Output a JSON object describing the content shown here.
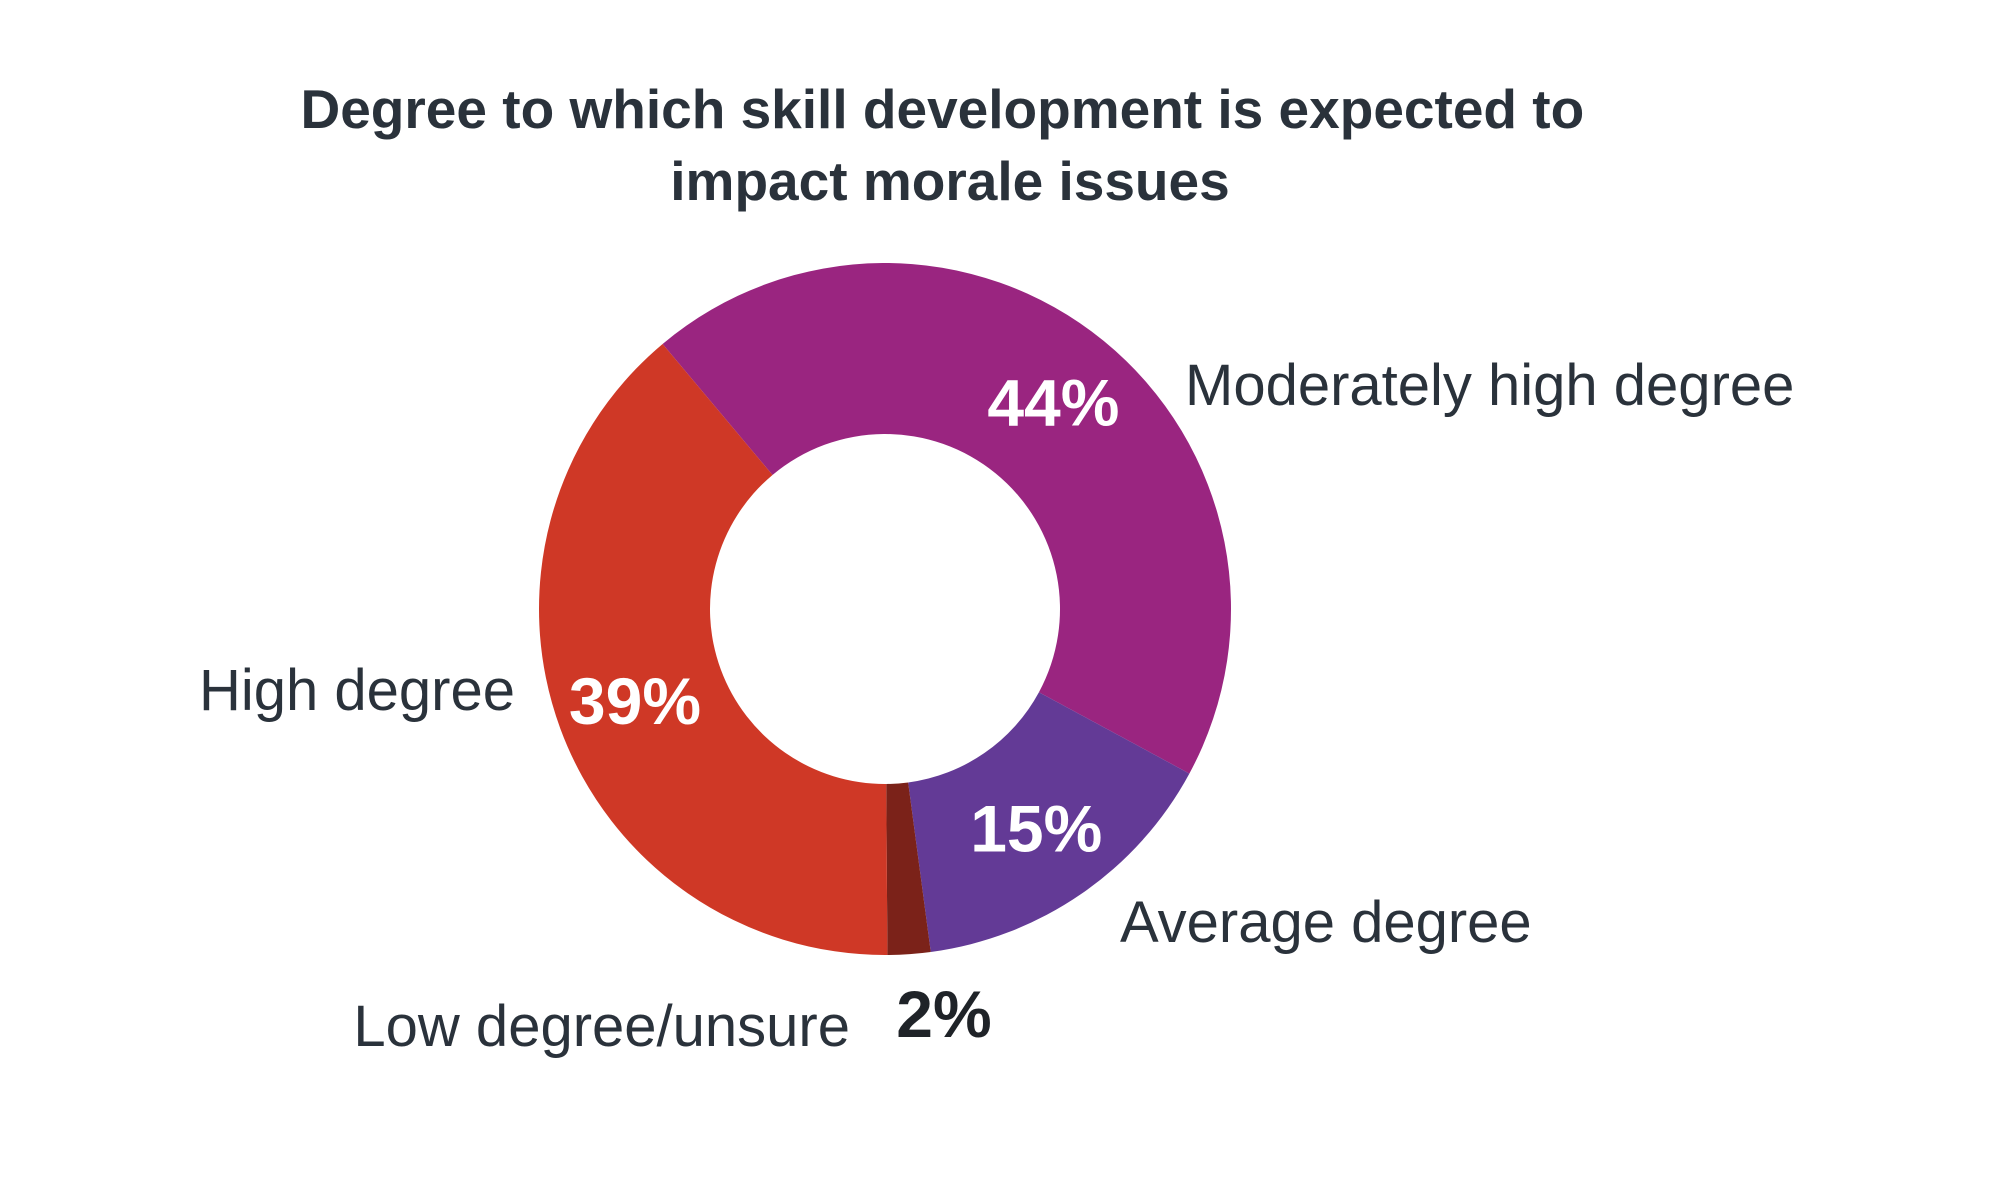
{
  "chart_data": {
    "type": "pie",
    "title": "Degree to which skill development is expected to impact morale issues",
    "title_lines": [
      "Degree to which skill development is expected to",
      "impact morale issues"
    ],
    "donut": true,
    "slices": [
      {
        "label": "Moderately high degree",
        "value": 44,
        "value_label": "44%",
        "color": "#9a2580",
        "value_label_color": "#ffffff"
      },
      {
        "label": "Average degree",
        "value": 15,
        "value_label": "15%",
        "color": "#633a96",
        "value_label_color": "#ffffff"
      },
      {
        "label": "Low degree/unsure",
        "value": 2,
        "value_label": "2%",
        "color": "#7b2219",
        "value_label_color": "#1f2328"
      },
      {
        "label": "High degree",
        "value": 39,
        "value_label": "39%",
        "color": "#cf3826",
        "value_label_color": "#ffffff"
      }
    ],
    "text_color": "#2a323b"
  }
}
